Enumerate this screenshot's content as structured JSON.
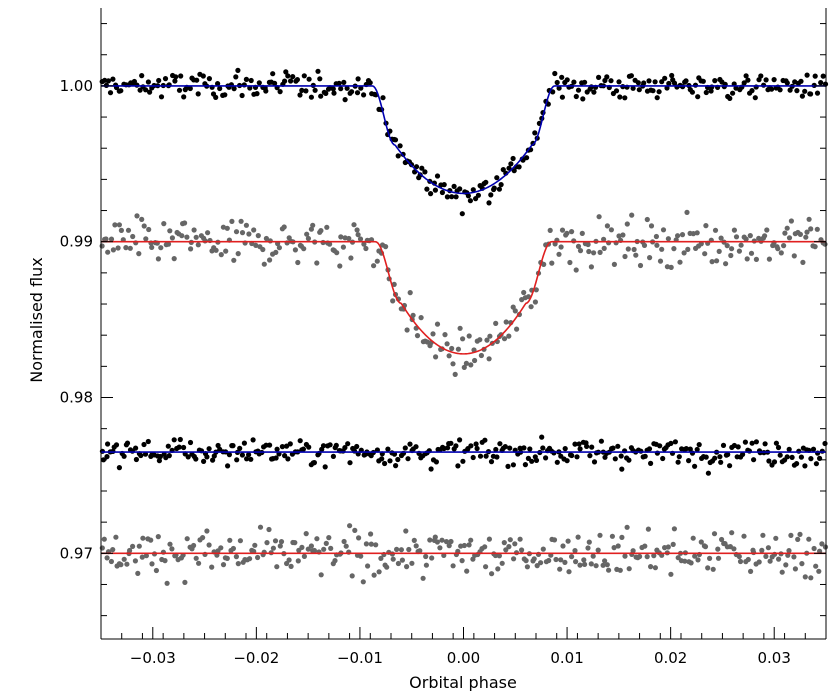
{
  "chart_data": {
    "type": "scatter",
    "title": "",
    "xlabel": "Orbital phase",
    "ylabel": "Normalised flux",
    "xlim": [
      -0.035,
      0.035
    ],
    "ylim": [
      0.9645,
      1.005
    ],
    "x_ticks": [
      -0.03,
      -0.02,
      -0.01,
      0.0,
      0.01,
      0.02,
      0.03
    ],
    "x_tick_labels": [
      "−0.03",
      "−0.02",
      "−0.01",
      "0.00",
      "0.01",
      "0.02",
      "0.03"
    ],
    "y_ticks": [
      0.97,
      0.98,
      0.99,
      1.0
    ],
    "y_tick_labels": [
      "0.97",
      "0.98",
      "0.99",
      "1.00"
    ],
    "grid": false,
    "legend": "none",
    "series": [
      {
        "kind": "lightcurve",
        "color": "#000000",
        "model_color": "#0000b0",
        "baseline": 1.0,
        "depth": 0.0069,
        "scatter": 0.0006,
        "contact_1": -0.0088,
        "contact_4": 0.0088,
        "ingress_duration": 0.0022
      },
      {
        "kind": "lightcurve",
        "color": "#666666",
        "model_color": "#e02020",
        "baseline": 0.99,
        "depth": 0.0072,
        "scatter": 0.001,
        "contact_1": -0.0085,
        "contact_4": 0.0085,
        "ingress_duration": 0.0025
      },
      {
        "kind": "residuals",
        "color": "#000000",
        "model_color": "#0000b0",
        "baseline": 0.9765,
        "scatter": 0.0006
      },
      {
        "kind": "residuals",
        "color": "#666666",
        "model_color": "#e02020",
        "baseline": 0.97,
        "scatter": 0.001
      }
    ]
  }
}
